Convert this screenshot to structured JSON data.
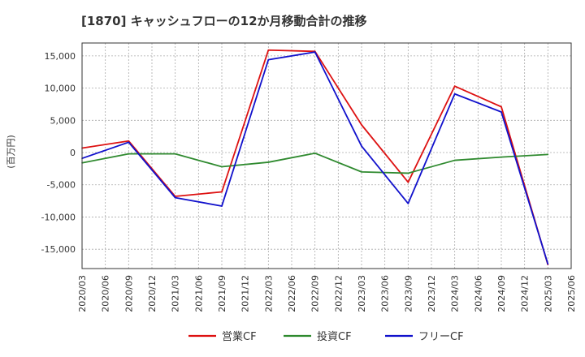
{
  "chart_data": {
    "type": "line",
    "title": "[1870]  キャッシュフローの12か月移動合計の推移",
    "ylabel": "(百万円)",
    "xlabel": "",
    "ylim": [
      -18000,
      17000
    ],
    "yticks": [
      -15000,
      -10000,
      -5000,
      0,
      5000,
      10000,
      15000
    ],
    "ytick_labels": [
      "-15,000",
      "-10,000",
      "-5,000",
      "0",
      "5,000",
      "10,000",
      "15,000"
    ],
    "grid": true,
    "categories": [
      "2020/03",
      "2020/06",
      "2020/09",
      "2020/12",
      "2021/03",
      "2021/06",
      "2021/09",
      "2021/12",
      "2022/03",
      "2022/06",
      "2022/09",
      "2022/12",
      "2023/03",
      "2023/06",
      "2023/09",
      "2023/12",
      "2024/03",
      "2024/06",
      "2024/09",
      "2024/12",
      "2025/03",
      "2025/06"
    ],
    "series": [
      {
        "name": "営業CF",
        "color": "#dd1111",
        "values": [
          700,
          null,
          1800,
          null,
          -6800,
          null,
          -6100,
          null,
          15900,
          null,
          15700,
          null,
          4300,
          null,
          -4600,
          null,
          10300,
          null,
          7100,
          null,
          -17400,
          null
        ]
      },
      {
        "name": "投資CF",
        "color": "#2f8a2f",
        "values": [
          -1600,
          null,
          -200,
          null,
          -200,
          null,
          -2200,
          null,
          -1500,
          null,
          -100,
          null,
          -3000,
          null,
          -3200,
          null,
          -1200,
          null,
          -700,
          null,
          -300,
          null
        ]
      },
      {
        "name": "フリーCF",
        "color": "#1111cc",
        "values": [
          -900,
          null,
          1600,
          null,
          -7000,
          null,
          -8300,
          null,
          14400,
          null,
          15600,
          null,
          1000,
          null,
          -7900,
          null,
          9100,
          null,
          6300,
          null,
          -17300,
          null
        ]
      }
    ],
    "legend_position": "bottom"
  }
}
